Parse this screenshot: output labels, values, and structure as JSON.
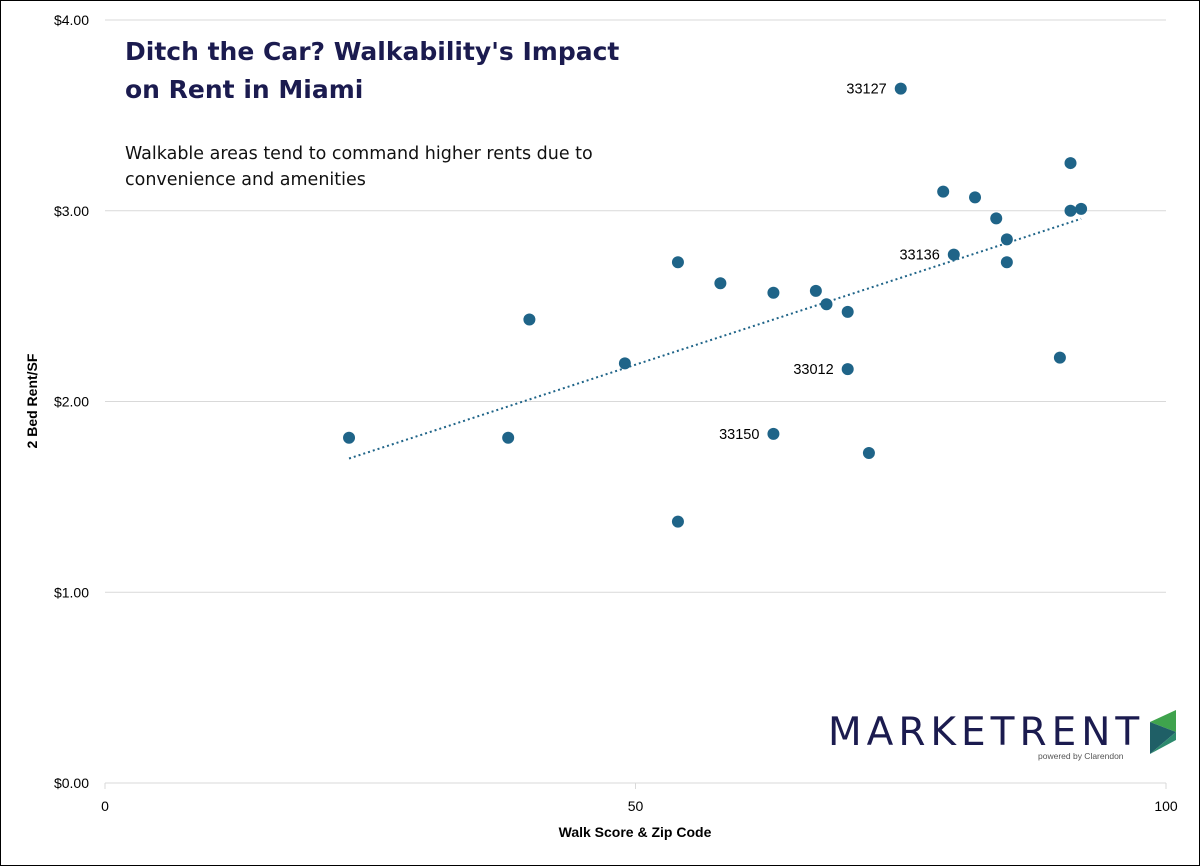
{
  "chart_data": {
    "type": "scatter",
    "title": "Ditch the Car? Walkability's Impact on Rent in Miami",
    "subtitle": "Walkable areas tend to command higher rents due to convenience and amenities",
    "xlabel": "Walk Score & Zip Code",
    "ylabel": "2 Bed Rent/SF",
    "xlim": [
      0,
      100
    ],
    "ylim": [
      0,
      4
    ],
    "x_ticks": [
      0,
      50,
      100
    ],
    "x_tick_labels": [
      "0",
      "50",
      "100"
    ],
    "y_ticks": [
      0,
      1,
      2,
      3,
      4
    ],
    "y_tick_labels": [
      "$0.00",
      "$1.00",
      "$2.00",
      "$3.00",
      "$4.00"
    ],
    "grid": "horizontal",
    "legend": "none",
    "colors": {
      "points": "#1f6488",
      "trendline": "#1f6488",
      "grid": "#d9d9d9",
      "title": "#1b1b4f"
    },
    "points": [
      {
        "x": 23,
        "y": 1.81,
        "label": ""
      },
      {
        "x": 38,
        "y": 1.81,
        "label": ""
      },
      {
        "x": 40,
        "y": 2.43,
        "label": ""
      },
      {
        "x": 49,
        "y": 2.2,
        "label": ""
      },
      {
        "x": 54,
        "y": 2.73,
        "label": ""
      },
      {
        "x": 54,
        "y": 1.37,
        "label": ""
      },
      {
        "x": 58,
        "y": 2.62,
        "label": ""
      },
      {
        "x": 63,
        "y": 2.57,
        "label": ""
      },
      {
        "x": 63,
        "y": 1.83,
        "label": "33150"
      },
      {
        "x": 67,
        "y": 2.58,
        "label": ""
      },
      {
        "x": 68,
        "y": 2.51,
        "label": ""
      },
      {
        "x": 70,
        "y": 2.47,
        "label": ""
      },
      {
        "x": 70,
        "y": 2.17,
        "label": "33012"
      },
      {
        "x": 72,
        "y": 1.73,
        "label": ""
      },
      {
        "x": 75,
        "y": 3.64,
        "label": "33127"
      },
      {
        "x": 79,
        "y": 3.1,
        "label": ""
      },
      {
        "x": 80,
        "y": 2.77,
        "label": "33136"
      },
      {
        "x": 82,
        "y": 3.07,
        "label": ""
      },
      {
        "x": 84,
        "y": 2.96,
        "label": ""
      },
      {
        "x": 85,
        "y": 2.85,
        "label": ""
      },
      {
        "x": 85,
        "y": 2.73,
        "label": ""
      },
      {
        "x": 90,
        "y": 2.23,
        "label": ""
      },
      {
        "x": 91,
        "y": 3.25,
        "label": ""
      },
      {
        "x": 91,
        "y": 3.0,
        "label": ""
      },
      {
        "x": 92,
        "y": 3.01,
        "label": ""
      }
    ],
    "trendline": {
      "type": "linear",
      "style": "dotted",
      "x_range": [
        23,
        92
      ]
    }
  },
  "logo": {
    "wordmark": "MARKETRENT",
    "tagline": "powered by Clarendon"
  }
}
